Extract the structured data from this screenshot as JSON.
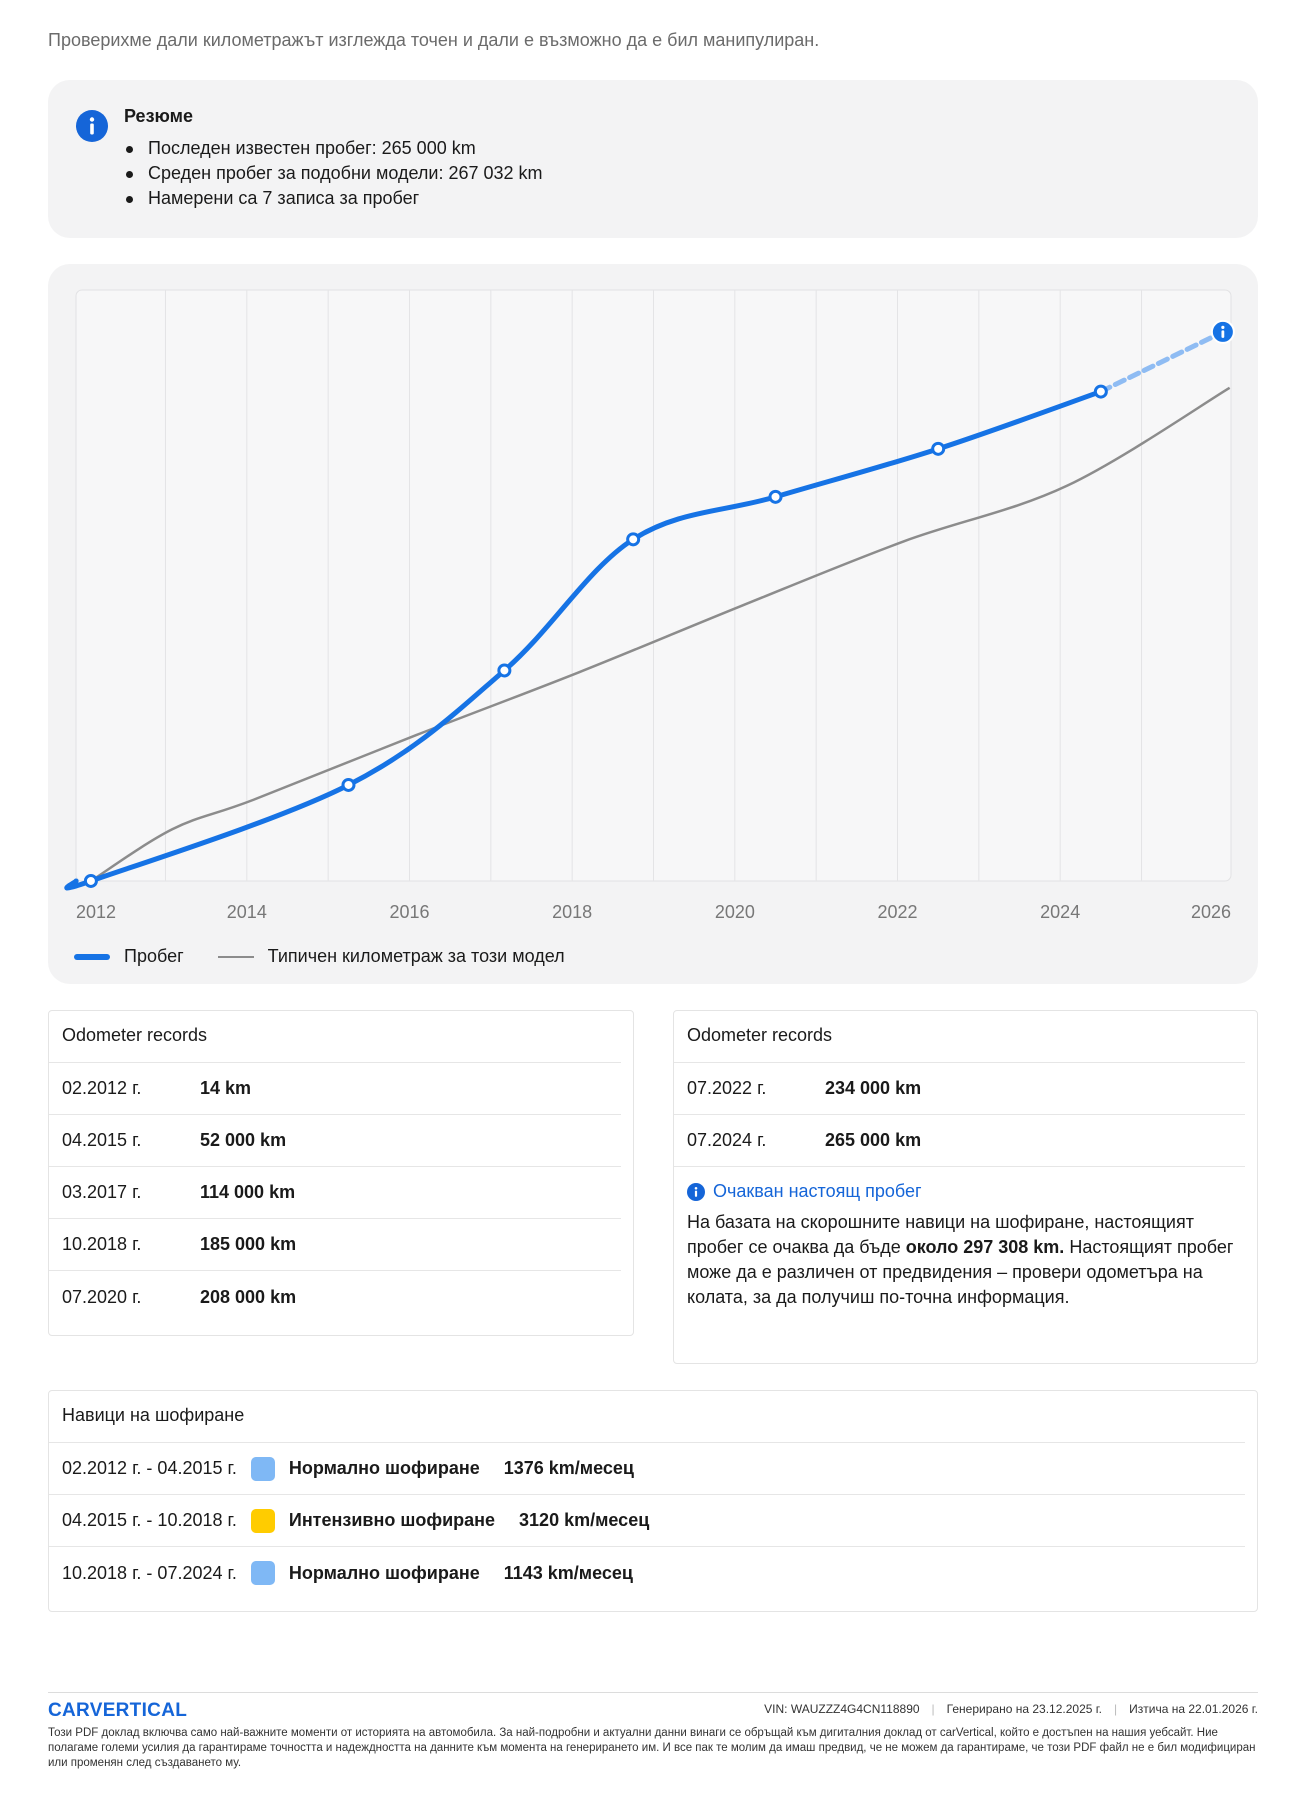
{
  "intro": "Проверихме дали километражът изглежда точен и дали е възможно да е бил манипулиран.",
  "summary": {
    "title": "Резюме",
    "items": [
      "Последен известен пробег: 265 000 km",
      "Среден пробег за подобни модели: 267 032 km",
      "Намерени са 7 записа за пробег"
    ]
  },
  "chart_data": {
    "type": "line",
    "x_ticks": [
      "2012",
      "2014",
      "2016",
      "2018",
      "2020",
      "2022",
      "2024",
      "2026"
    ],
    "xlim": [
      2011.9,
      2026.1
    ],
    "ylim": [
      0,
      320000
    ],
    "grid": "vertical",
    "legend_placement": "bottom-left",
    "series": [
      {
        "name": "Пробег",
        "color": "#1673e5",
        "points": [
          {
            "date": "2012-02",
            "km": 14
          },
          {
            "date": "2015-04",
            "km": 52000
          },
          {
            "date": "2017-03",
            "km": 114000
          },
          {
            "date": "2018-10",
            "km": 185000
          },
          {
            "date": "2020-07",
            "km": 208000
          },
          {
            "date": "2022-07",
            "km": 234000
          },
          {
            "date": "2024-07",
            "km": 265000
          }
        ],
        "projection": {
          "date": "2026-01",
          "km": 297308
        }
      },
      {
        "name": "Типичен километраж за този модел",
        "color": "#8c8c8c",
        "points": [
          {
            "date": "2012-02",
            "km": 0
          },
          {
            "date": "2013-02",
            "km": 28000
          },
          {
            "date": "2014-02",
            "km": 44000
          },
          {
            "date": "2016-02",
            "km": 79000
          },
          {
            "date": "2018-02",
            "km": 113000
          },
          {
            "date": "2020-02",
            "km": 149000
          },
          {
            "date": "2022-02",
            "km": 184000
          },
          {
            "date": "2024-02",
            "km": 214000
          },
          {
            "date": "2026-02",
            "km": 267032
          }
        ]
      }
    ]
  },
  "records_left": {
    "title": "Odometer records",
    "rows": [
      {
        "date": "02.2012 г.",
        "km": "14 km"
      },
      {
        "date": "04.2015 г.",
        "km": "52 000 km"
      },
      {
        "date": "03.2017 г.",
        "km": "114 000 km"
      },
      {
        "date": "10.2018 г.",
        "km": "185 000 km"
      },
      {
        "date": "07.2020 г.",
        "km": "208 000 km"
      }
    ]
  },
  "records_right": {
    "title": "Odometer records",
    "rows": [
      {
        "date": "07.2022 г.",
        "km": "234 000 km"
      },
      {
        "date": "07.2024 г.",
        "km": "265 000 km"
      }
    ],
    "expected": {
      "heading": "Очакван настоящ пробег",
      "text_before": "На базата на скорошните навици на шофиране, настоящият пробег се очаква да бъде ",
      "text_bold": "около 297 308 km.",
      "text_after": " Настоящият пробег може да е различен от предвидения – провери одометъра на колата, за да получиш по-точна информация."
    }
  },
  "habits": {
    "title": "Навици на шофиране",
    "rows": [
      {
        "period": "02.2012 г. - 04.2015 г.",
        "color": "#7fb8f5",
        "type": "Нормално шофиране",
        "rate": "1376 km/месец"
      },
      {
        "period": "04.2015 г. - 10.2018 г.",
        "color": "#ffcc00",
        "type": "Интензивно шофиране",
        "rate": "3120 km/месец"
      },
      {
        "period": "10.2018 г. - 07.2024 г.",
        "color": "#7fb8f5",
        "type": "Нормално шофиране",
        "rate": "1143 km/месец"
      }
    ]
  },
  "footer": {
    "logo": "CARVERTICAL",
    "vin_label": "VIN:",
    "vin": "WAUZZZ4G4CN118890",
    "generated_label": "Генерирано на",
    "generated": "23.12.2025 г.",
    "expires_label": "Изтича на",
    "expires": "22.01.2026 г.",
    "disclaimer": "Този PDF доклад включва само най-важните моменти от историята на автомобила. За най-подробни и актуални данни винаги се обръщай към дигиталния доклад от carVertical, който е достъпен на нашия уебсайт. Ние полагаме големи усилия да гарантираме точността и надеждността на данните към момента на генерирането им. И все пак те молим да имаш предвид, че не можем да гарантираме, че този PDF файл не е бил модифициран или променян след създаването му."
  },
  "colors": {
    "accent": "#1565d8",
    "line_blue": "#1673e5",
    "line_gray": "#8c8c8c",
    "card_bg": "#f3f3f4"
  }
}
